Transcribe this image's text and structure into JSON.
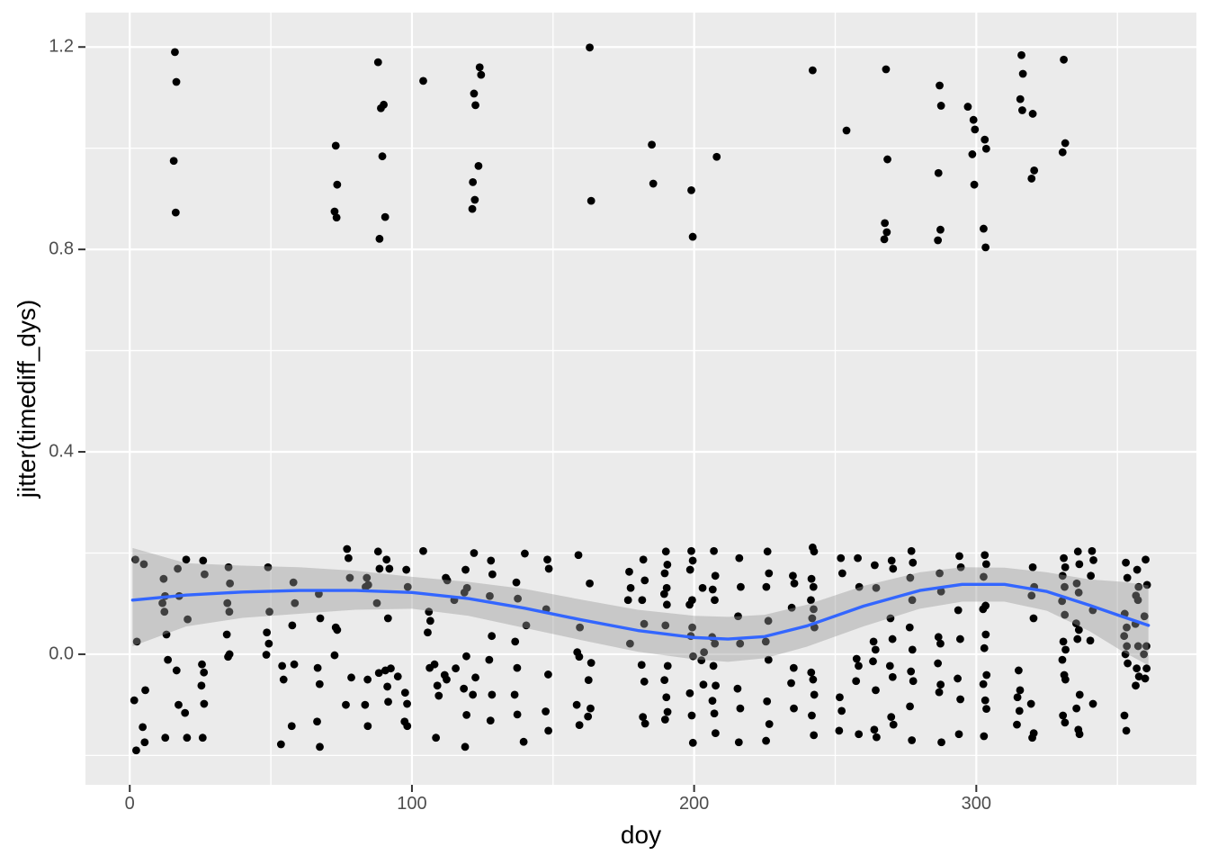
{
  "chart_data": {
    "type": "scatter",
    "title": "",
    "xlabel": "doy",
    "ylabel": "jitter(timediff_dys)",
    "xlim": [
      -15.7,
      378.0
    ],
    "ylim": [
      -0.258,
      1.268
    ],
    "grid": true,
    "legend": "none",
    "x_major_ticks": [
      0,
      100,
      200,
      300
    ],
    "x_tick_labels": [
      "0",
      "100",
      "200",
      "300"
    ],
    "x_minor_gridlines": [
      50,
      150,
      250,
      350
    ],
    "y_major_ticks": [
      0.0,
      0.4,
      0.8,
      1.2
    ],
    "y_tick_labels": [
      "0.0",
      "0.4",
      "0.8",
      "1.2"
    ],
    "y_minor_gridlines": [
      -0.2,
      0.2,
      0.6,
      1.0
    ],
    "colors": {
      "panel_bg": "#EBEBEB",
      "grid": "#FFFFFF",
      "point": "#000000",
      "smooth_line": "#3366FF",
      "ribbon": "#999999",
      "tick_text": "#4D4D4D",
      "axis_title": "#000000",
      "tick_mark": "#333333"
    },
    "ribbon_alpha": 0.42,
    "point_radius": 4.4,
    "points": {
      "jitter_stripes_low": [
        [
          2,
          [
            0.187,
            0.025,
            -0.091,
            -0.19
          ]
        ],
        [
          5,
          [
            0.178,
            -0.071,
            -0.144,
            -0.174
          ]
        ],
        [
          12,
          [
            0.149,
            0.115,
            0.101,
            0.084
          ]
        ],
        [
          13,
          [
            0.039,
            -0.011,
            -0.165
          ]
        ],
        [
          17,
          [
            0.169,
            0.115,
            -0.032,
            -0.1
          ]
        ],
        [
          20,
          [
            0.187,
            0.069,
            -0.116,
            -0.165
          ]
        ],
        [
          26,
          [
            0.185,
            0.158,
            -0.02,
            -0.036,
            -0.062,
            -0.098,
            -0.165
          ]
        ],
        [
          35,
          [
            0.172,
            0.14,
            0.101,
            0.084,
            0.039,
            0.0,
            -0.005
          ]
        ],
        [
          49,
          [
            0.172,
            0.084,
            0.043,
            0.021,
            -0.001
          ]
        ],
        [
          54,
          [
            -0.023,
            -0.05,
            -0.178
          ]
        ],
        [
          58,
          [
            0.142,
            0.101,
            0.057,
            -0.02,
            -0.142
          ]
        ],
        [
          67,
          [
            0.119,
            0.071,
            -0.027,
            -0.059,
            -0.133,
            -0.183
          ]
        ],
        [
          73,
          [
            0.053,
            0.048,
            -0.002
          ]
        ],
        [
          77,
          [
            0.208,
            0.19,
            -0.1
          ]
        ],
        [
          78,
          [
            0.151,
            -0.046
          ]
        ],
        [
          84,
          [
            0.151,
            0.137,
            0.133,
            -0.05,
            -0.1,
            -0.142
          ]
        ],
        [
          88,
          [
            0.203,
            0.169,
            0.101,
            -0.037
          ]
        ],
        [
          91,
          [
            0.187,
            0.071,
            -0.032,
            -0.064
          ]
        ],
        [
          92,
          [
            0.169,
            -0.028,
            -0.094
          ]
        ],
        [
          95,
          [
            -0.044
          ]
        ],
        [
          98,
          [
            0.167,
            0.133,
            -0.076,
            -0.098,
            -0.133,
            -0.142
          ]
        ],
        [
          104,
          [
            0.204
          ]
        ],
        [
          106,
          [
            0.084,
            0.066,
            0.043,
            -0.027
          ]
        ],
        [
          108,
          [
            -0.02,
            -0.165
          ]
        ],
        [
          109,
          [
            -0.062,
            -0.082
          ]
        ],
        [
          112,
          [
            0.151,
            0.146,
            -0.041,
            -0.05
          ]
        ],
        [
          115,
          [
            0.107,
            -0.028
          ]
        ],
        [
          119,
          [
            0.167,
            0.131,
            0.122,
            -0.004,
            -0.068,
            -0.12,
            -0.183
          ]
        ],
        [
          122,
          [
            0.2,
            -0.046,
            -0.08
          ]
        ],
        [
          128,
          [
            0.185,
            0.158,
            0.115,
            0.036,
            -0.011,
            -0.08,
            -0.131
          ]
        ],
        [
          137,
          [
            0.142,
            0.11,
            0.025,
            -0.027,
            -0.08,
            -0.119
          ]
        ],
        [
          140,
          [
            0.199,
            0.057,
            -0.173
          ]
        ],
        [
          148,
          [
            0.187,
            0.169,
            0.089,
            -0.04,
            -0.113,
            -0.151
          ]
        ],
        [
          159,
          [
            0.196,
            0.053,
            0.004,
            -0.005,
            -0.1,
            -0.14
          ]
        ],
        [
          163,
          [
            0.14,
            -0.017,
            -0.051,
            -0.107,
            -0.123
          ]
        ],
        [
          177,
          [
            0.163,
            0.131,
            0.107,
            0.021
          ]
        ],
        [
          182,
          [
            0.187,
            0.146,
            0.107,
            0.06,
            -0.021,
            -0.054,
            -0.124,
            -0.137
          ]
        ],
        [
          190,
          [
            0.203,
            0.177,
            0.16,
            0.131,
            0.119,
            0.098,
            0.057,
            -0.023,
            -0.051,
            -0.085,
            -0.114,
            -0.129
          ]
        ],
        [
          199,
          [
            0.204,
            0.185,
            0.167,
            0.107,
            0.098,
            0.053,
            0.036,
            -0.004,
            -0.077,
            -0.121,
            -0.175
          ]
        ],
        [
          203,
          [
            0.131,
            0.004,
            -0.012,
            -0.06
          ]
        ],
        [
          207,
          [
            0.204,
            0.155,
            0.128,
            0.107,
            0.034,
            0.021,
            -0.023,
            -0.062,
            -0.092,
            -0.117,
            -0.156
          ]
        ],
        [
          216,
          [
            0.19,
            0.133,
            0.075,
            0.021,
            -0.068,
            -0.107,
            -0.174
          ]
        ],
        [
          226,
          [
            0.203,
            0.16,
            0.133,
            0.066,
            0.025,
            -0.011,
            -0.093,
            -0.138,
            -0.171
          ]
        ],
        [
          235,
          [
            0.155,
            0.14,
            0.092,
            -0.027,
            -0.057,
            -0.107
          ]
        ],
        [
          242,
          [
            0.211,
            0.203,
            0.149,
            0.133,
            0.107,
            0.089,
            0.071,
            0.053,
            -0.036,
            -0.05,
            -0.08,
            -0.121,
            -0.16
          ]
        ],
        [
          252,
          [
            0.19,
            0.16,
            -0.085,
            -0.112,
            -0.151
          ]
        ],
        [
          258,
          [
            0.19,
            0.133,
            -0.009,
            -0.023,
            -0.053,
            -0.158
          ]
        ],
        [
          264,
          [
            0.176,
            0.131,
            0.025,
            0.009,
            -0.014,
            -0.071,
            -0.149,
            -0.164
          ]
        ],
        [
          270,
          [
            0.185,
            0.169,
            0.071,
            0.03,
            -0.023,
            -0.045,
            -0.124,
            -0.139
          ]
        ],
        [
          277,
          [
            0.204,
            0.181,
            0.151,
            0.107,
            0.053,
            0.009,
            -0.034,
            -0.053,
            -0.103,
            -0.17
          ]
        ],
        [
          287,
          [
            0.16,
            0.124,
            0.034,
            0.021,
            -0.018,
            -0.06,
            -0.075,
            -0.174
          ]
        ],
        [
          294,
          [
            0.194,
            0.172,
            0.087,
            0.03,
            -0.048,
            -0.089,
            -0.158
          ]
        ],
        [
          303,
          [
            0.196,
            0.178,
            0.153,
            0.096,
            0.089,
            0.039,
            0.012,
            -0.041,
            -0.059,
            -0.091,
            -0.108,
            -0.162
          ]
        ],
        [
          315,
          [
            -0.032,
            -0.071,
            -0.085,
            -0.112,
            -0.139
          ]
        ],
        [
          320,
          [
            0.172,
            0.133,
            0.116,
            0.071,
            -0.098,
            -0.156,
            -0.165
          ]
        ],
        [
          331,
          [
            0.19,
            0.172,
            0.155,
            0.133,
            0.105,
            0.078,
            0.025,
            0.009,
            -0.011,
            -0.041,
            -0.05,
            -0.121,
            -0.135
          ]
        ],
        [
          336,
          [
            0.203,
            0.178,
            0.14,
            0.122,
            0.061,
            0.048,
            0.03,
            -0.08,
            -0.107,
            -0.149,
            -0.158
          ]
        ],
        [
          341,
          [
            0.204,
            0.186,
            0.155,
            0.087,
            0.027,
            -0.098
          ]
        ],
        [
          353,
          [
            0.181,
            0.151,
            0.08,
            0.053,
            0.036,
            0.016,
            0.0,
            -0.018,
            -0.121,
            -0.151
          ]
        ],
        [
          357,
          [
            0.167,
            0.133,
            0.116,
            0.107,
            0.06,
            0.016,
            -0.028,
            -0.044,
            -0.062
          ]
        ],
        [
          360,
          [
            0.187,
            0.137,
            0.075,
            0.016,
            0.0,
            -0.028,
            -0.048
          ]
        ]
      ],
      "jitter_stripes_high": [
        [
          16,
          [
            1.19,
            1.131,
            0.975,
            0.873
          ]
        ],
        [
          73,
          [
            1.005,
            0.928,
            0.875,
            0.863
          ]
        ],
        [
          88,
          [
            1.17,
            0.821
          ]
        ],
        [
          89,
          [
            1.079,
            0.984
          ]
        ],
        [
          90,
          [
            1.086,
            0.864
          ]
        ],
        [
          104,
          [
            1.133
          ]
        ],
        [
          122,
          [
            1.108,
            1.085,
            0.933,
            0.898,
            0.88
          ]
        ],
        [
          124,
          [
            1.16,
            1.145,
            0.965
          ]
        ],
        [
          163,
          [
            1.199,
            0.896
          ]
        ],
        [
          185,
          [
            1.007,
            0.93
          ]
        ],
        [
          199,
          [
            0.917,
            0.825
          ]
        ],
        [
          208,
          [
            0.983
          ]
        ],
        [
          242,
          [
            1.154
          ]
        ],
        [
          254,
          [
            1.035
          ]
        ],
        [
          268,
          [
            1.156,
            0.978,
            0.852,
            0.834,
            0.82
          ]
        ],
        [
          287,
          [
            1.124,
            1.084,
            0.951,
            0.839,
            0.818
          ]
        ],
        [
          297,
          [
            1.082
          ]
        ],
        [
          299,
          [
            1.056,
            1.037,
            0.988,
            0.928
          ]
        ],
        [
          303,
          [
            1.017,
            0.999,
            0.841,
            0.804
          ]
        ],
        [
          316,
          [
            1.184,
            1.147,
            1.097,
            1.075
          ]
        ],
        [
          320,
          [
            1.068,
            0.956,
            0.94
          ]
        ],
        [
          331,
          [
            1.175,
            1.01,
            0.992
          ]
        ]
      ]
    },
    "smooth": {
      "x": [
        1,
        20,
        40,
        60,
        80,
        100,
        120,
        140,
        160,
        180,
        200,
        212,
        225,
        240,
        260,
        280,
        295,
        310,
        325,
        340,
        352,
        361
      ],
      "fit": [
        0.107,
        0.117,
        0.123,
        0.126,
        0.126,
        0.122,
        0.11,
        0.091,
        0.068,
        0.047,
        0.033,
        0.03,
        0.035,
        0.056,
        0.095,
        0.126,
        0.138,
        0.138,
        0.124,
        0.097,
        0.074,
        0.057
      ],
      "lower": [
        0.016,
        0.055,
        0.072,
        0.08,
        0.088,
        0.09,
        0.076,
        0.052,
        0.028,
        0.005,
        -0.01,
        -0.015,
        -0.008,
        0.015,
        0.055,
        0.09,
        0.104,
        0.104,
        0.086,
        0.046,
        0.005,
        -0.022
      ],
      "upper": [
        0.21,
        0.18,
        0.175,
        0.172,
        0.165,
        0.153,
        0.143,
        0.129,
        0.108,
        0.088,
        0.076,
        0.074,
        0.078,
        0.098,
        0.135,
        0.162,
        0.172,
        0.171,
        0.162,
        0.148,
        0.143,
        0.136
      ]
    }
  }
}
